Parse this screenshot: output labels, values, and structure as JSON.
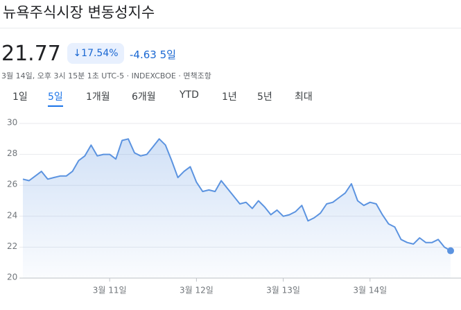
{
  "header": {
    "title": "뉴욕주식시장 변동성지수"
  },
  "quote": {
    "price": "21.77",
    "change_percent": "17.54%",
    "change": "-4.63",
    "period": "5일",
    "meta": "3월 14일, 오후 3시 15분 1초 UTC-5 · INDEXCBOE · 면책조항"
  },
  "tabs": {
    "items": [
      "1일",
      "5일",
      "1개월",
      "6개월",
      "YTD",
      "1년",
      "5년",
      "최대"
    ],
    "selected": 1
  },
  "chart_data": {
    "type": "line",
    "color": "#5b93e0",
    "grid": true,
    "values": [
      26.4,
      26.3,
      26.6,
      26.9,
      26.4,
      26.5,
      26.6,
      26.6,
      26.9,
      27.6,
      27.9,
      28.6,
      27.9,
      28.0,
      28.0,
      27.7,
      28.9,
      29.0,
      28.1,
      27.9,
      28.0,
      28.5,
      29.0,
      28.6,
      27.6,
      26.5,
      26.9,
      27.2,
      26.2,
      25.6,
      25.7,
      25.6,
      26.3,
      25.8,
      25.3,
      24.8,
      24.9,
      24.5,
      25.0,
      24.6,
      24.1,
      24.4,
      24.0,
      24.1,
      24.3,
      24.7,
      23.7,
      23.9,
      24.2,
      24.8,
      24.9,
      25.2,
      25.5,
      26.1,
      25.0,
      24.7,
      24.9,
      24.8,
      24.1,
      23.5,
      23.3,
      22.5,
      22.3,
      22.2,
      22.6,
      22.3,
      22.3,
      22.5,
      22.0,
      21.77
    ],
    "xlim": [
      0,
      69
    ],
    "xticks": [
      {
        "value": 14,
        "label": "3월 11일"
      },
      {
        "value": 28,
        "label": "3월 12일"
      },
      {
        "value": 42,
        "label": "3월 13일"
      },
      {
        "value": 56,
        "label": "3월 14일"
      }
    ],
    "ylim": [
      20,
      30
    ],
    "yticks": [
      20,
      22,
      24,
      26,
      28,
      30
    ]
  }
}
